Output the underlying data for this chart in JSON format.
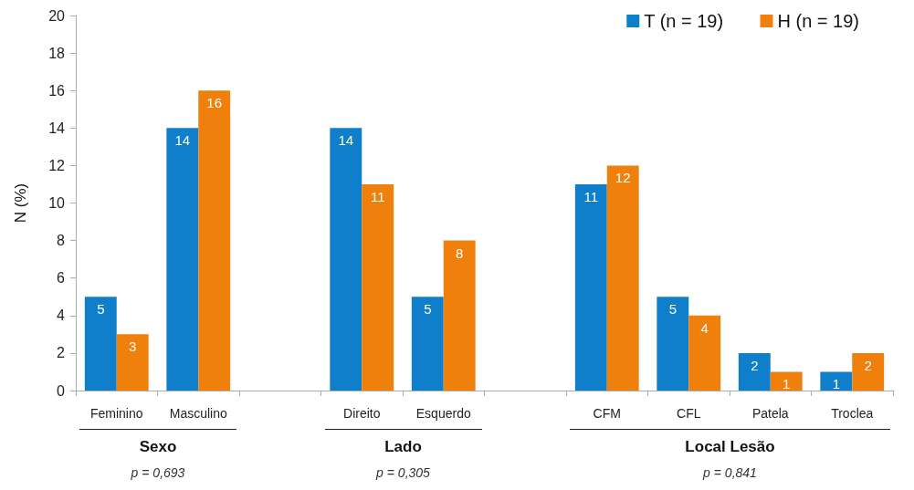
{
  "chart_data": {
    "type": "bar",
    "ylabel": "N (%)",
    "categories": [
      "Feminino",
      "Masculino",
      null,
      "Direito",
      "Esquerdo",
      null,
      "CFM",
      "CFL",
      "Patela",
      "Troclea"
    ],
    "series": [
      {
        "name": "T (n = 19)",
        "color": "#0f7fcb",
        "values": [
          5,
          14,
          null,
          14,
          5,
          null,
          11,
          5,
          2,
          1
        ]
      },
      {
        "name": "H (n = 19)",
        "color": "#f0800c",
        "values": [
          3,
          16,
          null,
          11,
          8,
          null,
          12,
          4,
          1,
          2
        ]
      }
    ],
    "ylim": [
      0,
      20
    ],
    "yticks": [
      0,
      2,
      4,
      6,
      8,
      10,
      12,
      14,
      16,
      18,
      20
    ],
    "grid": false,
    "legend": "top right",
    "data_labels": true,
    "annotations": [
      "Sexo",
      "p = 0,693",
      "Lado",
      "p = 0,305",
      "Local Lesão",
      "p = 0,841"
    ]
  }
}
